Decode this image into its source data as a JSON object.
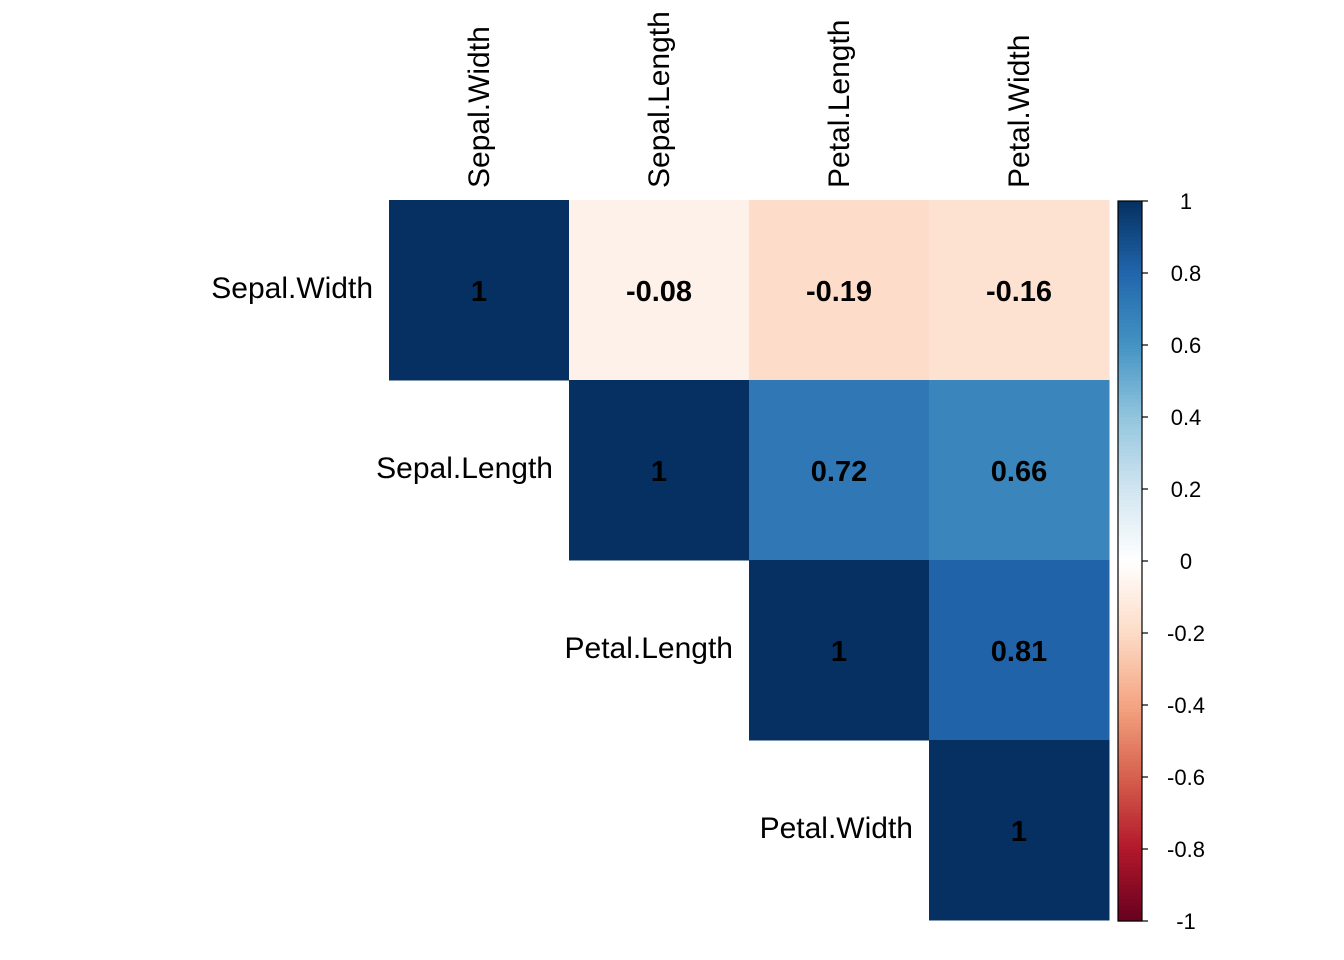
{
  "chart_data": {
    "type": "heatmap",
    "layout": "upper-triangle",
    "variables": [
      "Sepal.Width",
      "Sepal.Length",
      "Petal.Length",
      "Petal.Width"
    ],
    "row_labels": [
      "Sepal.Width",
      "Sepal.Length",
      "Petal.Length",
      "Petal.Width"
    ],
    "col_labels": [
      "Sepal.Width",
      "Sepal.Length",
      "Petal.Length",
      "Petal.Width"
    ],
    "matrix": [
      [
        1,
        -0.08,
        -0.19,
        -0.16
      ],
      [
        null,
        1,
        0.72,
        0.66
      ],
      [
        null,
        null,
        1,
        0.81
      ],
      [
        null,
        null,
        null,
        1
      ]
    ],
    "value_labels": [
      [
        "1",
        "-0.08",
        "-0.19",
        "-0.16"
      ],
      [
        null,
        "1",
        "0.72",
        "0.66"
      ],
      [
        null,
        null,
        "1",
        "0.81"
      ],
      [
        null,
        null,
        null,
        "1"
      ]
    ],
    "colorbar": {
      "range": [
        -1,
        1
      ],
      "ticks": [
        1,
        0.8,
        0.6,
        0.4,
        0.2,
        0,
        -0.2,
        -0.4,
        -0.6,
        -0.8,
        -1
      ],
      "tick_labels": [
        "1",
        "0.8",
        "0.6",
        "0.4",
        "0.2",
        "0",
        "-0.2",
        "-0.4",
        "-0.6",
        "-0.8",
        "-1"
      ],
      "palette": [
        "#67001F",
        "#B2182B",
        "#D6604D",
        "#F4A582",
        "#FDDBC7",
        "#FFFFFF",
        "#D1E5F0",
        "#92C5DE",
        "#4393C3",
        "#2166AC",
        "#053061"
      ],
      "placement": "right"
    }
  }
}
